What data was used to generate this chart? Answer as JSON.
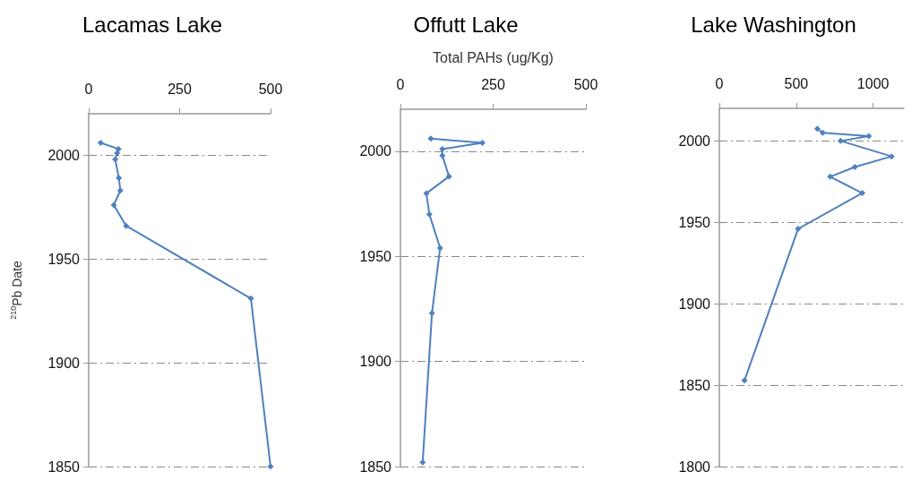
{
  "chart_data": [
    {
      "type": "line",
      "title": "Lacamas Lake",
      "ylabel": "$^{210}$Pb Date",
      "marker": "diamond",
      "grid": "y",
      "xlim": [
        0,
        500
      ],
      "xticks": [
        0,
        250,
        500
      ],
      "ylim": [
        1850,
        2020
      ],
      "yticks": [
        1850,
        1900,
        1950,
        2000
      ],
      "series": [
        {
          "color": "#4f81bd",
          "x": [
            33,
            82,
            78,
            73,
            83,
            87,
            69,
            103,
            446,
            500
          ],
          "values": [
            2006,
            2003,
            2001,
            1998,
            1989,
            1983,
            1976,
            1966,
            1931,
            1850
          ]
        }
      ]
    },
    {
      "type": "line",
      "title": "Offutt Lake",
      "xlabel": "Total PAHs (ug/Kg)",
      "marker": "diamond",
      "grid": "y",
      "xlim": [
        0,
        500
      ],
      "xticks": [
        0,
        250,
        500
      ],
      "ylim": [
        1850,
        2020
      ],
      "yticks": [
        1850,
        1900,
        1950,
        2000
      ],
      "series": [
        {
          "color": "#4f81bd",
          "x": [
            82,
            221,
            113,
            113,
            131,
            70,
            78,
            107,
            85,
            60
          ],
          "values": [
            2006,
            2004,
            2001,
            1998,
            1988,
            1980,
            1970,
            1954,
            1923,
            1852
          ]
        }
      ]
    },
    {
      "type": "line",
      "title": "Lake Washington",
      "marker": "diamond",
      "grid": "y",
      "xlim": [
        0,
        1200
      ],
      "xticks": [
        0,
        500,
        1000
      ],
      "ylim": [
        1800,
        2020
      ],
      "yticks": [
        1800,
        1850,
        1900,
        1950,
        2000
      ],
      "series": [
        {
          "color": "#4f81bd",
          "x": [
            637,
            672,
            972,
            789,
            1120,
            881,
            721,
            929,
            512,
            164
          ],
          "values": [
            2007.5,
            2005,
            2003,
            2000,
            1990.5,
            1984,
            1978,
            1968,
            1946,
            1853
          ]
        }
      ]
    }
  ]
}
